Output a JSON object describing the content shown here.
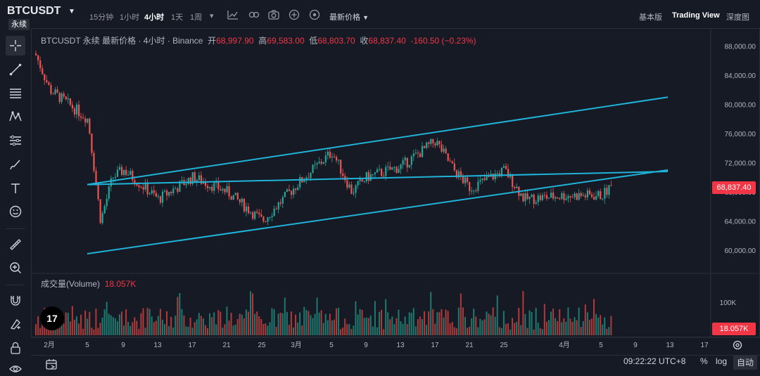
{
  "header": {
    "symbol": "BTCUSDT",
    "contract_type": "永续",
    "timeframes": [
      "15分钟",
      "1小时",
      "4小时",
      "1天",
      "1周"
    ],
    "active_timeframe": "4小时",
    "price_type_menu": "最新价格",
    "view_options": [
      "基本版",
      "Trading View",
      "深度图"
    ],
    "active_view": "Trading View"
  },
  "legend": {
    "title": "BTCUSDT 永续 最新价格 · 4小时 · Binance",
    "open_label": "开",
    "open": "68,997.90",
    "high_label": "高",
    "high": "69,583.00",
    "low_label": "低",
    "low": "68,803.70",
    "close_label": "收",
    "close": "68,837.40",
    "change": "-160.50 (−0.23%)"
  },
  "volume_legend": {
    "label": "成交量(Volume)",
    "value": "18.057K"
  },
  "price_axis": {
    "ticks": [
      "88,000.00",
      "84,000.00",
      "80,000.00",
      "76,000.00",
      "72,000.00",
      "68,000.00",
      "64,000.00",
      "60,000.00"
    ],
    "last_price_tag": "68,837.40"
  },
  "volume_axis": {
    "ticks": [
      "100K"
    ],
    "last_volume_tag": "18.057K"
  },
  "time_axis": {
    "ticks": [
      "2月",
      "5",
      "9",
      "13",
      "17",
      "21",
      "25",
      "3月",
      "5",
      "9",
      "13",
      "17",
      "21",
      "25",
      "4月",
      "5",
      "9",
      "13",
      "17"
    ]
  },
  "status": {
    "clock": "09:22:22 UTC+8",
    "percent_label": "%",
    "log_label": "log",
    "auto_label": "自动"
  },
  "logo_text": "17",
  "colors": {
    "background": "#161a25",
    "up": "#26a69a",
    "down": "#ef5350",
    "channel": "#1fb3d8",
    "last_price_tag": "#f23645",
    "text": "#d1d4dc"
  },
  "toolbar_icons": [
    "crosshair-icon",
    "trendline-icon",
    "fib-icon",
    "pattern-icon",
    "prediction-icon",
    "brush-icon",
    "text-icon",
    "emoji-icon",
    "ruler-icon",
    "zoom-in-icon",
    "magnet-icon",
    "lock-drawing-icon",
    "lock-icon",
    "eye-icon"
  ],
  "chart_data": {
    "type": "candlestick",
    "symbol": "BTCUSDT",
    "interval": "4小时",
    "last": {
      "open": 68997.9,
      "high": 69583.0,
      "low": 68803.7,
      "close": 68837.4,
      "change": -160.5,
      "change_pct": -0.23
    },
    "y_range": [
      57000,
      90000
    ],
    "x_range": [
      "2月",
      "17"
    ],
    "approx_close_path": [
      {
        "t": "2月 -",
        "price": 87000
      },
      {
        "t": "2月",
        "price": 82000
      },
      {
        "t": "5",
        "price": 78000
      },
      {
        "t": "6",
        "price": 64000
      },
      {
        "t": "7",
        "price": 70000
      },
      {
        "t": "9",
        "price": 71000
      },
      {
        "t": "13",
        "price": 67000
      },
      {
        "t": "17",
        "price": 70000
      },
      {
        "t": "21",
        "price": 68000
      },
      {
        "t": "25",
        "price": 64000
      },
      {
        "t": "3月",
        "price": 69000
      },
      {
        "t": "5",
        "price": 73500
      },
      {
        "t": "7",
        "price": 68000
      },
      {
        "t": "9",
        "price": 70000
      },
      {
        "t": "13",
        "price": 71500
      },
      {
        "t": "17",
        "price": 75000
      },
      {
        "t": "19",
        "price": 71000
      },
      {
        "t": "21",
        "price": 68500
      },
      {
        "t": "25",
        "price": 71000
      },
      {
        "t": "27",
        "price": 67000
      },
      {
        "t": "4月",
        "price": 67500
      },
      {
        "t": "5",
        "price": 67500
      },
      {
        "t": "6",
        "price": 68837.4
      }
    ],
    "channel_upper": [
      {
        "t": "5",
        "price": 69000
      },
      {
        "t": "4月+13d",
        "price": 81000
      }
    ],
    "channel_mid": [
      {
        "t": "5",
        "price": 69000
      },
      {
        "t": "4月+13d",
        "price": 70800
      }
    ],
    "channel_lower": [
      {
        "t": "5",
        "price": 59500
      },
      {
        "t": "4月+13d",
        "price": 71000
      }
    ],
    "grid": false
  }
}
